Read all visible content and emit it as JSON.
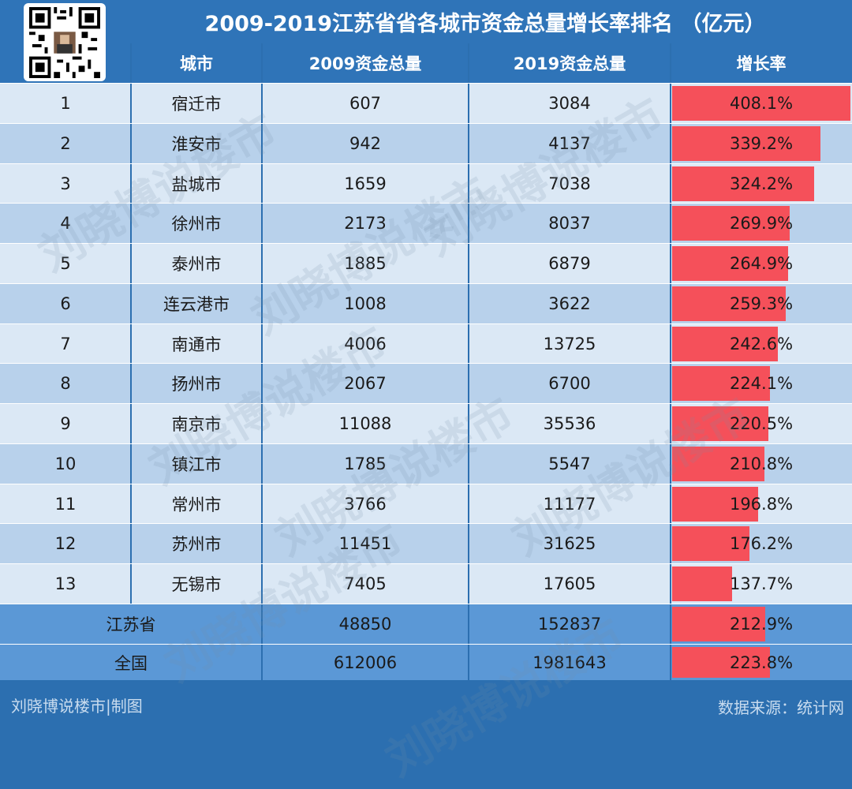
{
  "title": "2009-2019江苏省省各城市资金总量增长率排名 （亿元）",
  "columns": [
    "城市",
    "2009资金总量",
    "2019资金总量",
    "增长率"
  ],
  "rows": [
    {
      "rank": "1",
      "city": "宿迁市",
      "v2009": "607",
      "v2019": "3084",
      "rate": "408.1%"
    },
    {
      "rank": "2",
      "city": "淮安市",
      "v2009": "942",
      "v2019": "4137",
      "rate": "339.2%"
    },
    {
      "rank": "3",
      "city": "盐城市",
      "v2009": "1659",
      "v2019": "7038",
      "rate": "324.2%"
    },
    {
      "rank": "4",
      "city": "徐州市",
      "v2009": "2173",
      "v2019": "8037",
      "rate": "269.9%"
    },
    {
      "rank": "5",
      "city": "泰州市",
      "v2009": "1885",
      "v2019": "6879",
      "rate": "264.9%"
    },
    {
      "rank": "6",
      "city": "连云港市",
      "v2009": "1008",
      "v2019": "3622",
      "rate": "259.3%"
    },
    {
      "rank": "7",
      "city": "南通市",
      "v2009": "4006",
      "v2019": "13725",
      "rate": "242.6%"
    },
    {
      "rank": "8",
      "city": "扬州市",
      "v2009": "2067",
      "v2019": "6700",
      "rate": "224.1%"
    },
    {
      "rank": "9",
      "city": "南京市",
      "v2009": "11088",
      "v2019": "35536",
      "rate": "220.5%"
    },
    {
      "rank": "10",
      "city": "镇江市",
      "v2009": "1785",
      "v2019": "5547",
      "rate": "210.8%"
    },
    {
      "rank": "11",
      "city": "常州市",
      "v2009": "3766",
      "v2019": "11177",
      "rate": "196.8%"
    },
    {
      "rank": "12",
      "city": "苏州市",
      "v2009": "11451",
      "v2019": "31625",
      "rate": "176.2%"
    },
    {
      "rank": "13",
      "city": "无锡市",
      "v2009": "7405",
      "v2019": "17605",
      "rate": "137.7%"
    }
  ],
  "totals": [
    {
      "label": "江苏省",
      "v2009": "48850",
      "v2019": "152837",
      "rate": "212.9%"
    },
    {
      "label": "全国",
      "v2009": "612006",
      "v2019": "1981643",
      "rate": "223.8%"
    }
  ],
  "footer_left": "刘晓博说楼市|制图",
  "footer_right": "数据来源：统计网",
  "watermark": "刘晓博说楼市",
  "colors": {
    "header_bg": "#2f74b8",
    "row_light": "#dbe8f5",
    "row_dark": "#b8d1eb",
    "total_bg": "#5b98d6",
    "bar": "#f5505a",
    "qr": "#000000"
  },
  "chart_data": {
    "type": "table",
    "title": "2009-2019江苏省省各城市资金总量增长率排名 （亿元）",
    "categories": [
      "宿迁市",
      "淮安市",
      "盐城市",
      "徐州市",
      "泰州市",
      "连云港市",
      "南通市",
      "扬州市",
      "南京市",
      "镇江市",
      "常州市",
      "苏州市",
      "无锡市",
      "江苏省",
      "全国"
    ],
    "series": [
      {
        "name": "2009资金总量",
        "values": [
          607,
          942,
          1659,
          2173,
          1885,
          1008,
          4006,
          2067,
          11088,
          1785,
          3766,
          11451,
          7405,
          48850,
          612006
        ]
      },
      {
        "name": "2019资金总量",
        "values": [
          3084,
          4137,
          7038,
          8037,
          6879,
          3622,
          13725,
          6700,
          35536,
          5547,
          11177,
          31625,
          17605,
          152837,
          1981643
        ]
      },
      {
        "name": "增长率",
        "values": [
          408.1,
          339.2,
          324.2,
          269.9,
          264.9,
          259.3,
          242.6,
          224.1,
          220.5,
          210.8,
          196.8,
          176.2,
          137.7,
          212.9,
          223.8
        ]
      }
    ]
  }
}
